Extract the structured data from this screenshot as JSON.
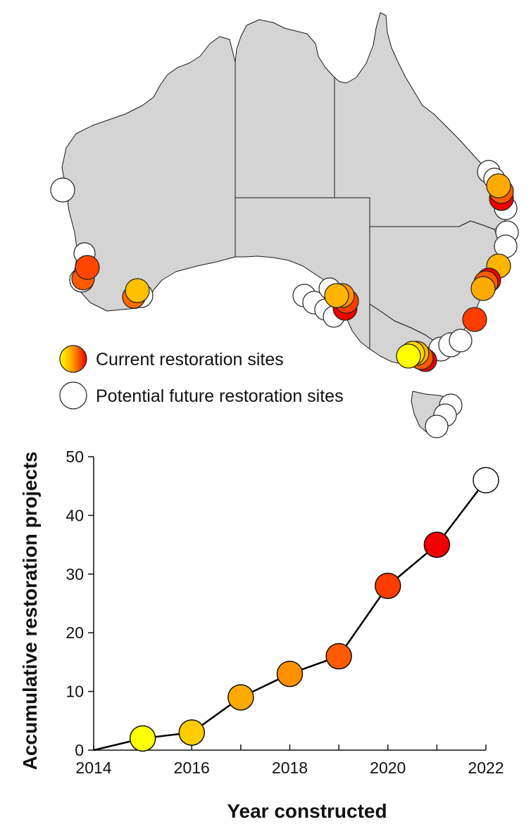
{
  "map": {
    "legend": {
      "current_label": "Current restoration sites",
      "potential_label": "Potential future restoration sites"
    },
    "colors": {
      "land": "#d4d4d4",
      "gradient": [
        "#ffff00",
        "#ffc000",
        "#ff8c00",
        "#ff4500",
        "#e60000"
      ]
    },
    "regions": [
      {
        "name": "western-australia"
      },
      {
        "name": "northern-territory"
      },
      {
        "name": "queensland"
      },
      {
        "name": "south-australia"
      },
      {
        "name": "new-south-wales"
      },
      {
        "name": "victoria"
      },
      {
        "name": "tasmania"
      }
    ]
  },
  "chart_data": {
    "type": "line",
    "title": "",
    "xlabel": "Year constructed",
    "ylabel": "Accumulative restoration projects",
    "xlim": [
      2014,
      2022
    ],
    "ylim": [
      0,
      50
    ],
    "x_ticks": [
      2014,
      2016,
      2018,
      2020,
      2022
    ],
    "y_ticks": [
      0,
      10,
      20,
      30,
      40,
      50
    ],
    "grid": false,
    "series": [
      {
        "x": [
          2014,
          2015,
          2016,
          2017,
          2018,
          2019,
          2020,
          2021,
          2022
        ],
        "y": [
          0,
          2,
          3,
          9,
          13,
          16,
          28,
          35,
          46
        ],
        "marker_colors": [
          null,
          "#ffff00",
          "#ffcc00",
          "#ffaa00",
          "#ff9100",
          "#ff5a00",
          "#ff3c00",
          "#f00000",
          "#ffffff"
        ]
      }
    ]
  }
}
